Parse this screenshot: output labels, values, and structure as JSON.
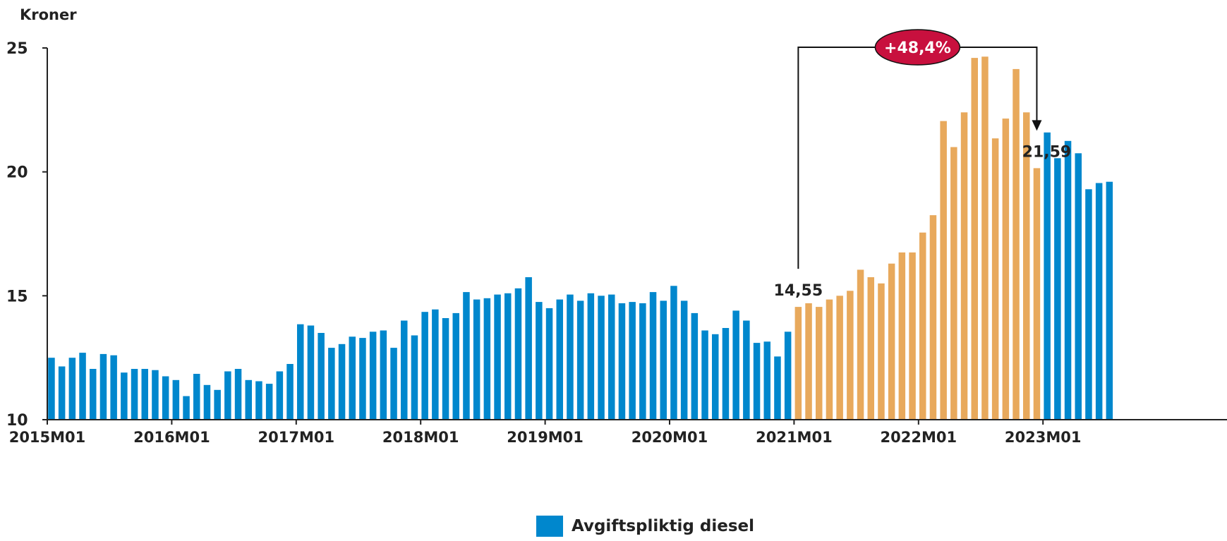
{
  "colors": {
    "base": "#0087cd",
    "highlight": "#e8a95c",
    "badge": "#c8103e",
    "axis": "#222222"
  },
  "chart_data": {
    "type": "bar",
    "ylabel": "Kroner",
    "ylim": [
      10,
      25
    ],
    "yticks": [
      "10",
      "15",
      "20",
      "25"
    ],
    "x_tick_labels": [
      "2015M01",
      "2016M01",
      "2017M01",
      "2018M01",
      "2019M01",
      "2020M01",
      "2021M01",
      "2022M01",
      "2023M01"
    ],
    "start_period": "2015M01",
    "legend": "Avgiftspliktig diesel",
    "grid": false,
    "values": [
      12.5,
      12.15,
      12.5,
      12.7,
      12.05,
      12.65,
      12.6,
      11.9,
      12.05,
      12.05,
      12.0,
      11.75,
      11.6,
      10.95,
      11.85,
      11.4,
      11.2,
      11.95,
      12.05,
      11.6,
      11.55,
      11.45,
      11.95,
      12.25,
      13.85,
      13.8,
      13.5,
      12.9,
      13.05,
      13.35,
      13.3,
      13.55,
      13.6,
      12.9,
      14.0,
      13.4,
      14.35,
      14.45,
      14.1,
      14.3,
      15.15,
      14.85,
      14.9,
      15.05,
      15.1,
      15.3,
      15.75,
      14.75,
      14.5,
      14.85,
      15.05,
      14.8,
      15.1,
      15.0,
      15.05,
      14.7,
      14.75,
      14.7,
      15.15,
      14.8,
      15.4,
      14.8,
      14.3,
      13.6,
      13.45,
      13.7,
      14.4,
      14.0,
      13.1,
      13.15,
      12.55,
      13.55,
      14.55,
      14.7,
      14.55,
      14.85,
      15.0,
      15.2,
      16.05,
      15.75,
      15.5,
      16.3,
      16.75,
      16.75,
      17.55,
      18.25,
      22.05,
      21.0,
      22.4,
      24.6,
      24.65,
      21.35,
      22.15,
      24.15,
      22.4,
      20.15,
      21.59,
      20.55,
      21.25,
      20.75,
      19.3,
      19.55,
      19.6
    ],
    "highlight_range": [
      "2021M01",
      "2023M01"
    ],
    "annotations": {
      "start_value": "14,55",
      "end_value": "21,59",
      "change": "+48,4%"
    }
  }
}
